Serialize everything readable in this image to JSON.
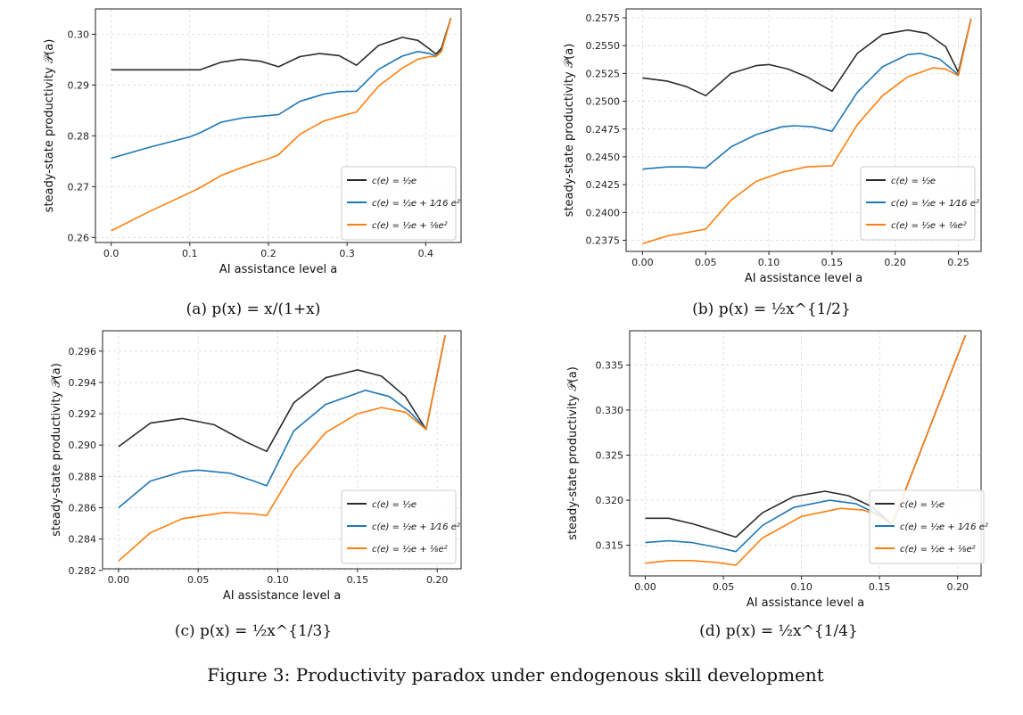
{
  "colors": {
    "series_black": "#2b2b2b",
    "series_blue": "#1f77b4",
    "series_orange": "#ff7f0e"
  },
  "legend": [
    "c(e) = ½e",
    "c(e) = ½e + 1⁄16 e²",
    "c(e) = ½e + ⅛e²"
  ],
  "figure_caption": "Figure 3: Productivity paradox under endogenous skill development",
  "chart_data": [
    {
      "type": "line",
      "panel_caption": "(a) p(x) = x/(1+x)",
      "xlabel": "AI assistance level a",
      "ylabel": "steady-state productivity 𝒫(a)",
      "xlim": [
        -0.02,
        0.445
      ],
      "ylim": [
        0.259,
        0.305
      ],
      "xticks": [
        0.0,
        0.1,
        0.2,
        0.3,
        0.4
      ],
      "xtick_labels": [
        "0.0",
        "0.1",
        "0.2",
        "0.3",
        "0.4"
      ],
      "yticks": [
        0.26,
        0.27,
        0.28,
        0.29,
        0.3
      ],
      "ytick_labels": [
        "0.26",
        "0.27",
        "0.28",
        "0.29",
        "0.30"
      ],
      "grid": true,
      "legend_position": "lower-right",
      "series": [
        {
          "name": "c(e) = ½e",
          "x": [
            0.0,
            0.05,
            0.1,
            0.113,
            0.14,
            0.165,
            0.19,
            0.213,
            0.24,
            0.265,
            0.29,
            0.312,
            0.34,
            0.37,
            0.39,
            0.405,
            0.413,
            0.42,
            0.432
          ],
          "y": [
            0.293,
            0.293,
            0.293,
            0.293,
            0.2945,
            0.2951,
            0.2947,
            0.2936,
            0.2956,
            0.2962,
            0.2958,
            0.2939,
            0.2978,
            0.2994,
            0.2988,
            0.2971,
            0.2961,
            0.2973,
            0.3032
          ]
        },
        {
          "name": "c(e) = ½e + 1⁄16 e²",
          "x": [
            0.0,
            0.05,
            0.1,
            0.113,
            0.14,
            0.17,
            0.2,
            0.213,
            0.24,
            0.27,
            0.29,
            0.312,
            0.34,
            0.37,
            0.39,
            0.405,
            0.413,
            0.42,
            0.432
          ],
          "y": [
            0.2756,
            0.2778,
            0.2798,
            0.2806,
            0.2827,
            0.2836,
            0.284,
            0.2842,
            0.2868,
            0.2882,
            0.2887,
            0.2888,
            0.2931,
            0.2957,
            0.2966,
            0.2962,
            0.2957,
            0.2968,
            0.3032
          ]
        },
        {
          "name": "c(e) = ½e + ⅛e²",
          "x": [
            0.0,
            0.05,
            0.1,
            0.113,
            0.14,
            0.17,
            0.2,
            0.213,
            0.24,
            0.27,
            0.29,
            0.312,
            0.34,
            0.37,
            0.39,
            0.405,
            0.413,
            0.42,
            0.432
          ],
          "y": [
            0.2613,
            0.2652,
            0.2688,
            0.2698,
            0.2722,
            0.274,
            0.2755,
            0.2763,
            0.2803,
            0.2829,
            0.2838,
            0.2847,
            0.2898,
            0.2933,
            0.2951,
            0.2956,
            0.2956,
            0.2966,
            0.3032
          ]
        }
      ]
    },
    {
      "type": "line",
      "panel_caption": "(b) p(x) = ½x^{1/2}",
      "xlabel": "AI assistance level a",
      "ylabel": "steady-state productivity 𝒫(a)",
      "xlim": [
        -0.013,
        0.268
      ],
      "ylim": [
        0.2365,
        0.2583
      ],
      "xticks": [
        0.0,
        0.05,
        0.1,
        0.15,
        0.2,
        0.25
      ],
      "xtick_labels": [
        "0.00",
        "0.05",
        "0.10",
        "0.15",
        "0.20",
        "0.25"
      ],
      "yticks": [
        0.2375,
        0.24,
        0.2425,
        0.245,
        0.2475,
        0.25,
        0.2525,
        0.255,
        0.2575
      ],
      "ytick_labels": [
        "0.2375",
        "0.2400",
        "0.2425",
        "0.2450",
        "0.2475",
        "0.2500",
        "0.2525",
        "0.2550",
        "0.2575"
      ],
      "grid": true,
      "legend_position": "lower-right",
      "series": [
        {
          "name": "c(e) = ½e",
          "x": [
            0.0,
            0.02,
            0.035,
            0.05,
            0.07,
            0.09,
            0.1,
            0.115,
            0.13,
            0.15,
            0.17,
            0.19,
            0.21,
            0.225,
            0.24,
            0.25,
            0.26
          ],
          "y": [
            0.2521,
            0.2518,
            0.2513,
            0.2505,
            0.2525,
            0.2532,
            0.2533,
            0.2529,
            0.2522,
            0.2509,
            0.2543,
            0.256,
            0.2564,
            0.2561,
            0.2549,
            0.2526,
            0.2574
          ]
        },
        {
          "name": "c(e) = ½e + 1⁄16 e²",
          "x": [
            0.0,
            0.02,
            0.035,
            0.05,
            0.07,
            0.09,
            0.11,
            0.12,
            0.135,
            0.15,
            0.17,
            0.19,
            0.21,
            0.22,
            0.235,
            0.25,
            0.26
          ],
          "y": [
            0.2439,
            0.2441,
            0.2441,
            0.244,
            0.2459,
            0.247,
            0.2477,
            0.2478,
            0.2477,
            0.2473,
            0.2508,
            0.2531,
            0.2542,
            0.2543,
            0.2538,
            0.2524,
            0.2574
          ]
        },
        {
          "name": "c(e) = ½e + ⅛e²",
          "x": [
            0.0,
            0.02,
            0.035,
            0.05,
            0.07,
            0.09,
            0.11,
            0.13,
            0.15,
            0.17,
            0.19,
            0.21,
            0.23,
            0.24,
            0.25,
            0.26
          ],
          "y": [
            0.2372,
            0.2379,
            0.2382,
            0.2385,
            0.2411,
            0.2428,
            0.2436,
            0.2441,
            0.2442,
            0.2479,
            0.2505,
            0.2522,
            0.253,
            0.2529,
            0.2523,
            0.2574
          ]
        }
      ]
    },
    {
      "type": "line",
      "panel_caption": "(c) p(x) = ½x^{1/3}",
      "xlabel": "AI assistance level a",
      "ylabel": "steady-state productivity 𝒫(a)",
      "xlim": [
        -0.01,
        0.215
      ],
      "ylim": [
        0.2821,
        0.2973
      ],
      "xticks": [
        0.0,
        0.05,
        0.1,
        0.15,
        0.2
      ],
      "xtick_labels": [
        "0.00",
        "0.05",
        "0.10",
        "0.15",
        "0.20"
      ],
      "yticks": [
        0.282,
        0.284,
        0.286,
        0.288,
        0.29,
        0.292,
        0.294,
        0.296
      ],
      "ytick_labels": [
        "0.282",
        "0.284",
        "0.286",
        "0.288",
        "0.290",
        "0.292",
        "0.294",
        "0.296"
      ],
      "grid": true,
      "legend_position": "lower-right",
      "series": [
        {
          "name": "c(e) = ½e",
          "x": [
            0.0,
            0.02,
            0.04,
            0.06,
            0.08,
            0.093,
            0.11,
            0.13,
            0.15,
            0.165,
            0.18,
            0.193,
            0.205
          ],
          "y": [
            0.2899,
            0.2914,
            0.2917,
            0.2913,
            0.2902,
            0.2896,
            0.2927,
            0.2943,
            0.2948,
            0.2944,
            0.2931,
            0.291,
            0.297
          ]
        },
        {
          "name": "c(e) = ½e + 1⁄16 e²",
          "x": [
            0.0,
            0.02,
            0.04,
            0.05,
            0.07,
            0.085,
            0.093,
            0.11,
            0.13,
            0.155,
            0.17,
            0.183,
            0.193,
            0.205
          ],
          "y": [
            0.286,
            0.2877,
            0.2883,
            0.2884,
            0.2882,
            0.2877,
            0.2874,
            0.2909,
            0.2926,
            0.2935,
            0.2931,
            0.2921,
            0.291,
            0.297
          ]
        },
        {
          "name": "c(e) = ½e + ⅛e²",
          "x": [
            0.0,
            0.02,
            0.04,
            0.067,
            0.085,
            0.093,
            0.11,
            0.13,
            0.15,
            0.165,
            0.18,
            0.193,
            0.205
          ],
          "y": [
            0.2826,
            0.2844,
            0.2853,
            0.2857,
            0.2856,
            0.2855,
            0.2884,
            0.2908,
            0.292,
            0.2924,
            0.2921,
            0.291,
            0.297
          ]
        }
      ]
    },
    {
      "type": "line",
      "panel_caption": "(d) p(x) = ½x^{1/4}",
      "xlabel": "AI assistance level a",
      "ylabel": "steady-state productivity 𝒫(a)",
      "xlim": [
        -0.01,
        0.215
      ],
      "ylim": [
        0.3116,
        0.3388
      ],
      "xticks": [
        0.0,
        0.05,
        0.1,
        0.15,
        0.2
      ],
      "xtick_labels": [
        "0.00",
        "0.05",
        "0.10",
        "0.15",
        "0.20"
      ],
      "yticks": [
        0.315,
        0.32,
        0.325,
        0.33,
        0.335
      ],
      "ytick_labels": [
        "0.315",
        "0.320",
        "0.325",
        "0.330",
        "0.335"
      ],
      "grid": true,
      "legend_position": "lower-right",
      "series": [
        {
          "name": "c(e) = ½e",
          "x": [
            0.0,
            0.015,
            0.03,
            0.045,
            0.058,
            0.075,
            0.095,
            0.115,
            0.13,
            0.145,
            0.158,
            0.205
          ],
          "y": [
            0.318,
            0.318,
            0.3174,
            0.3166,
            0.3159,
            0.3186,
            0.3204,
            0.321,
            0.3205,
            0.3193,
            0.3173,
            0.3383
          ]
        },
        {
          "name": "c(e) = ½e + 1⁄16 e²",
          "x": [
            0.0,
            0.015,
            0.03,
            0.045,
            0.058,
            0.075,
            0.095,
            0.118,
            0.135,
            0.148,
            0.158,
            0.205
          ],
          "y": [
            0.3153,
            0.3155,
            0.3153,
            0.3148,
            0.3143,
            0.3172,
            0.3192,
            0.32,
            0.3196,
            0.3185,
            0.3173,
            0.3383
          ]
        },
        {
          "name": "c(e) = ½e + ⅛e²",
          "x": [
            0.0,
            0.015,
            0.03,
            0.045,
            0.058,
            0.075,
            0.1,
            0.125,
            0.14,
            0.15,
            0.158,
            0.205
          ],
          "y": [
            0.313,
            0.3133,
            0.3133,
            0.3131,
            0.3128,
            0.3158,
            0.3182,
            0.3191,
            0.3189,
            0.3182,
            0.3173,
            0.3383
          ]
        }
      ]
    }
  ]
}
